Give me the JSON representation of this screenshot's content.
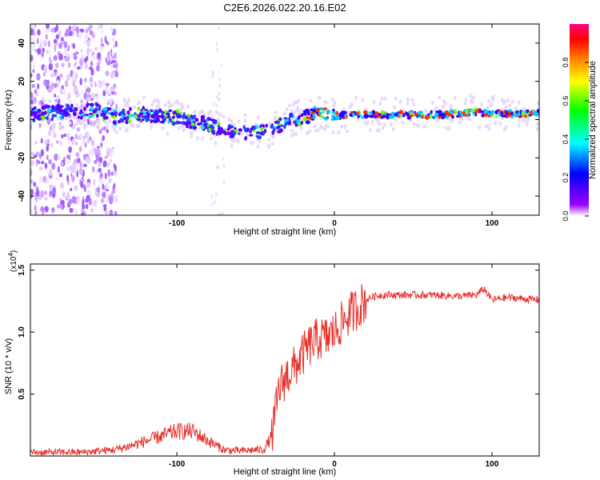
{
  "title": "C2E6.2026.022.20.16.E02",
  "chart_data": [
    {
      "type": "heatmap",
      "xlabel": "Height of straight line (km)",
      "ylabel": "Frequency (Hz)",
      "xlim": [
        -193,
        130
      ],
      "ylim": [
        -50,
        50
      ],
      "xticks": [
        -100,
        0,
        100
      ],
      "yticks": [
        -40,
        -20,
        0,
        20,
        40
      ],
      "noise_region_x": [
        -193,
        -138
      ],
      "ridge": {
        "x": [
          -193,
          -170,
          -150,
          -140,
          -120,
          -100,
          -90,
          -80,
          -70,
          -60,
          -50,
          -40,
          -35,
          -30,
          -25,
          -20,
          -15,
          -10,
          0,
          10,
          20,
          40,
          60,
          80,
          90,
          100,
          110,
          130
        ],
        "freq_hz": [
          3,
          4,
          5,
          1,
          3,
          1,
          -1,
          -3,
          -5,
          -6,
          -7,
          -6,
          -3,
          0,
          0.5,
          1,
          2,
          3,
          2,
          2.5,
          2.5,
          2.5,
          2.5,
          3,
          4,
          3,
          3,
          3
        ]
      },
      "colorbar": {
        "label": "Normalized spectral amplitude",
        "ticks": [
          0.0,
          0.2,
          0.4,
          0.6,
          0.8
        ],
        "range": [
          0,
          1
        ],
        "colormap": [
          "#ffffff",
          "#8000ff",
          "#0000ff",
          "#00ffff",
          "#00ff00",
          "#ffff00",
          "#ff8000",
          "#ff0000",
          "#ff00ff"
        ]
      }
    },
    {
      "type": "line",
      "xlabel": "Height of straight line (km)",
      "ylabel": "SNR (10 * v/v)",
      "yscale_label": "(x10",
      "yscale_exponent": "4",
      "yscale_suffix": ")",
      "xlim": [
        -193,
        130
      ],
      "ylim": [
        0,
        1.55
      ],
      "xticks": [
        -100,
        0,
        100
      ],
      "yticks": [
        0.5,
        1.0,
        1.5
      ],
      "color": "#e8302a",
      "series": [
        {
          "name": "SNR",
          "x": [
            -193,
            -160,
            -140,
            -130,
            -120,
            -110,
            -100,
            -90,
            -80,
            -70,
            -60,
            -50,
            -45,
            -40,
            -38,
            -35,
            -30,
            -25,
            -20,
            -15,
            -10,
            -5,
            0,
            5,
            10,
            15,
            20,
            25,
            30,
            40,
            60,
            80,
            90,
            95,
            100,
            110,
            130
          ],
          "y": [
            0.03,
            0.03,
            0.05,
            0.08,
            0.12,
            0.16,
            0.2,
            0.2,
            0.12,
            0.05,
            0.04,
            0.05,
            0.05,
            0.15,
            0.3,
            0.55,
            0.65,
            0.72,
            0.82,
            0.9,
            0.95,
            0.95,
            1.0,
            1.08,
            1.15,
            1.2,
            1.26,
            1.29,
            1.3,
            1.3,
            1.3,
            1.29,
            1.3,
            1.35,
            1.26,
            1.28,
            1.26
          ]
        }
      ]
    }
  ]
}
